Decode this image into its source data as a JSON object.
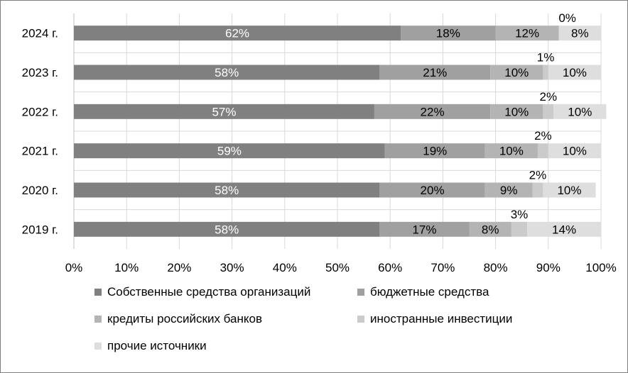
{
  "chart_data": {
    "type": "bar",
    "orientation": "horizontal",
    "stacked": true,
    "categories": [
      "2024 г.",
      "2023 г.",
      "2022 г.",
      "2021 г.",
      "2020 г.",
      "2019 г."
    ],
    "series": [
      {
        "name": "Собственные средства организаций",
        "values": [
          62,
          58,
          57,
          59,
          58,
          58
        ],
        "color": "#808080",
        "label_color": "#ffffff"
      },
      {
        "name": "бюджетные средства",
        "values": [
          18,
          21,
          22,
          19,
          20,
          17
        ],
        "color": "#a0a0a0",
        "label_color": "#000000"
      },
      {
        "name": "кредиты российских банков",
        "values": [
          12,
          10,
          10,
          10,
          9,
          8
        ],
        "color": "#b4b4b4",
        "label_color": "#000000"
      },
      {
        "name": "иностранные инвестиции",
        "values": [
          0,
          1,
          2,
          2,
          2,
          3
        ],
        "color": "#cbcbcb",
        "label_color": "#000000"
      },
      {
        "name": "прочие источники",
        "values": [
          8,
          10,
          10,
          10,
          10,
          14
        ],
        "color": "#dedede",
        "label_color": "#000000"
      }
    ],
    "value_suffix": "%",
    "xlim": [
      0,
      100
    ],
    "xticks": [
      "0%",
      "10%",
      "20%",
      "30%",
      "40%",
      "50%",
      "60%",
      "70%",
      "80%",
      "90%",
      "100%"
    ],
    "grid": true,
    "legend_position": "bottom"
  }
}
